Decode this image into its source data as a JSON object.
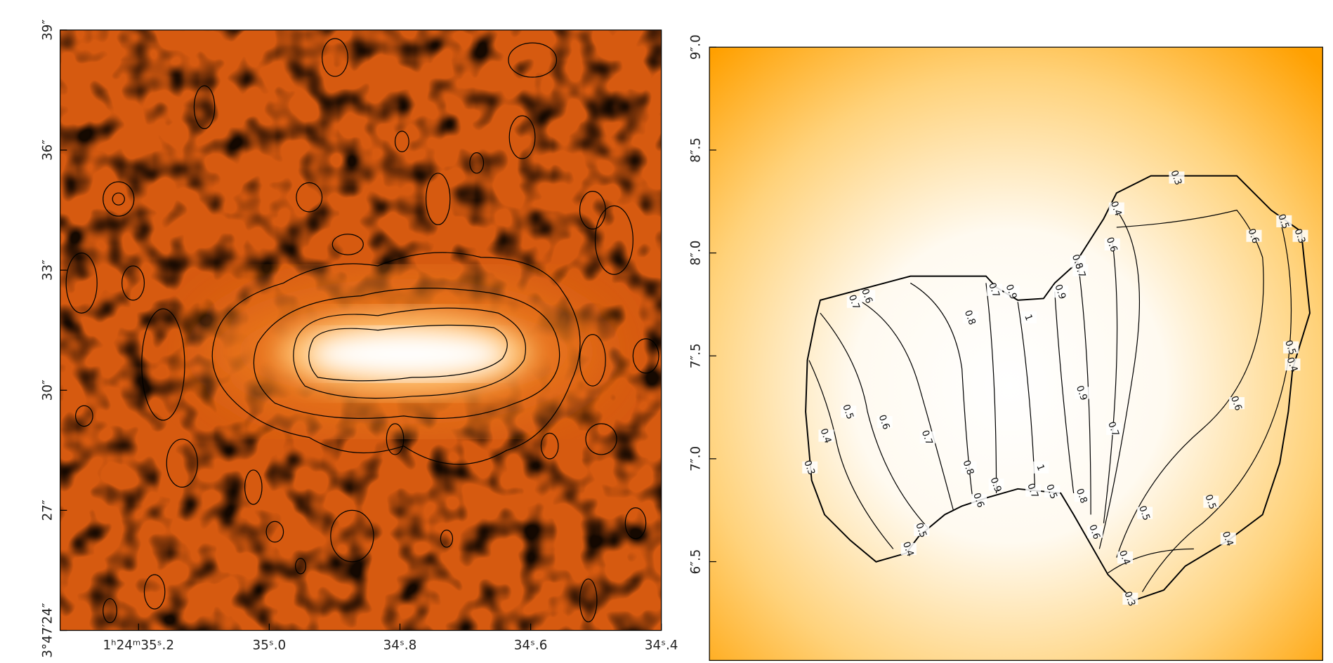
{
  "chart_data": [
    {
      "type": "image",
      "xlim": [
        35.32,
        34.4
      ],
      "xticks": [
        {
          "value": 35.2,
          "label": "1ʰ24ᵐ35ˢ.2"
        },
        {
          "value": 35.0,
          "label": "35ˢ.0"
        },
        {
          "value": 34.8,
          "label": "34ˢ.8"
        },
        {
          "value": 34.6,
          "label": "34ˢ.6"
        },
        {
          "value": 34.4,
          "label": "34ˢ.4"
        }
      ],
      "ylim": [
        24,
        39
      ],
      "yticks": [
        {
          "value": 24,
          "label": "3°47′24″"
        },
        {
          "value": 27,
          "label": "27″"
        },
        {
          "value": 30,
          "label": "30″"
        },
        {
          "value": 33,
          "label": "33″"
        },
        {
          "value": 36,
          "label": "36″"
        },
        {
          "value": 39,
          "label": "39″"
        }
      ]
    },
    {
      "type": "contour",
      "ylim": [
        6.02,
        9.0
      ],
      "yticks": [
        {
          "value": 6.5,
          "label": "6″.5"
        },
        {
          "value": 7.0,
          "label": "7″.0"
        },
        {
          "value": 7.5,
          "label": "7″.5"
        },
        {
          "value": 8.0,
          "label": "8″.0"
        },
        {
          "value": 8.5,
          "label": "8″.5"
        },
        {
          "value": 9.0,
          "label": "9″.0"
        }
      ],
      "levels": [
        0.3,
        0.4,
        0.5,
        0.6,
        0.7,
        0.8,
        0.9,
        1
      ]
    }
  ]
}
